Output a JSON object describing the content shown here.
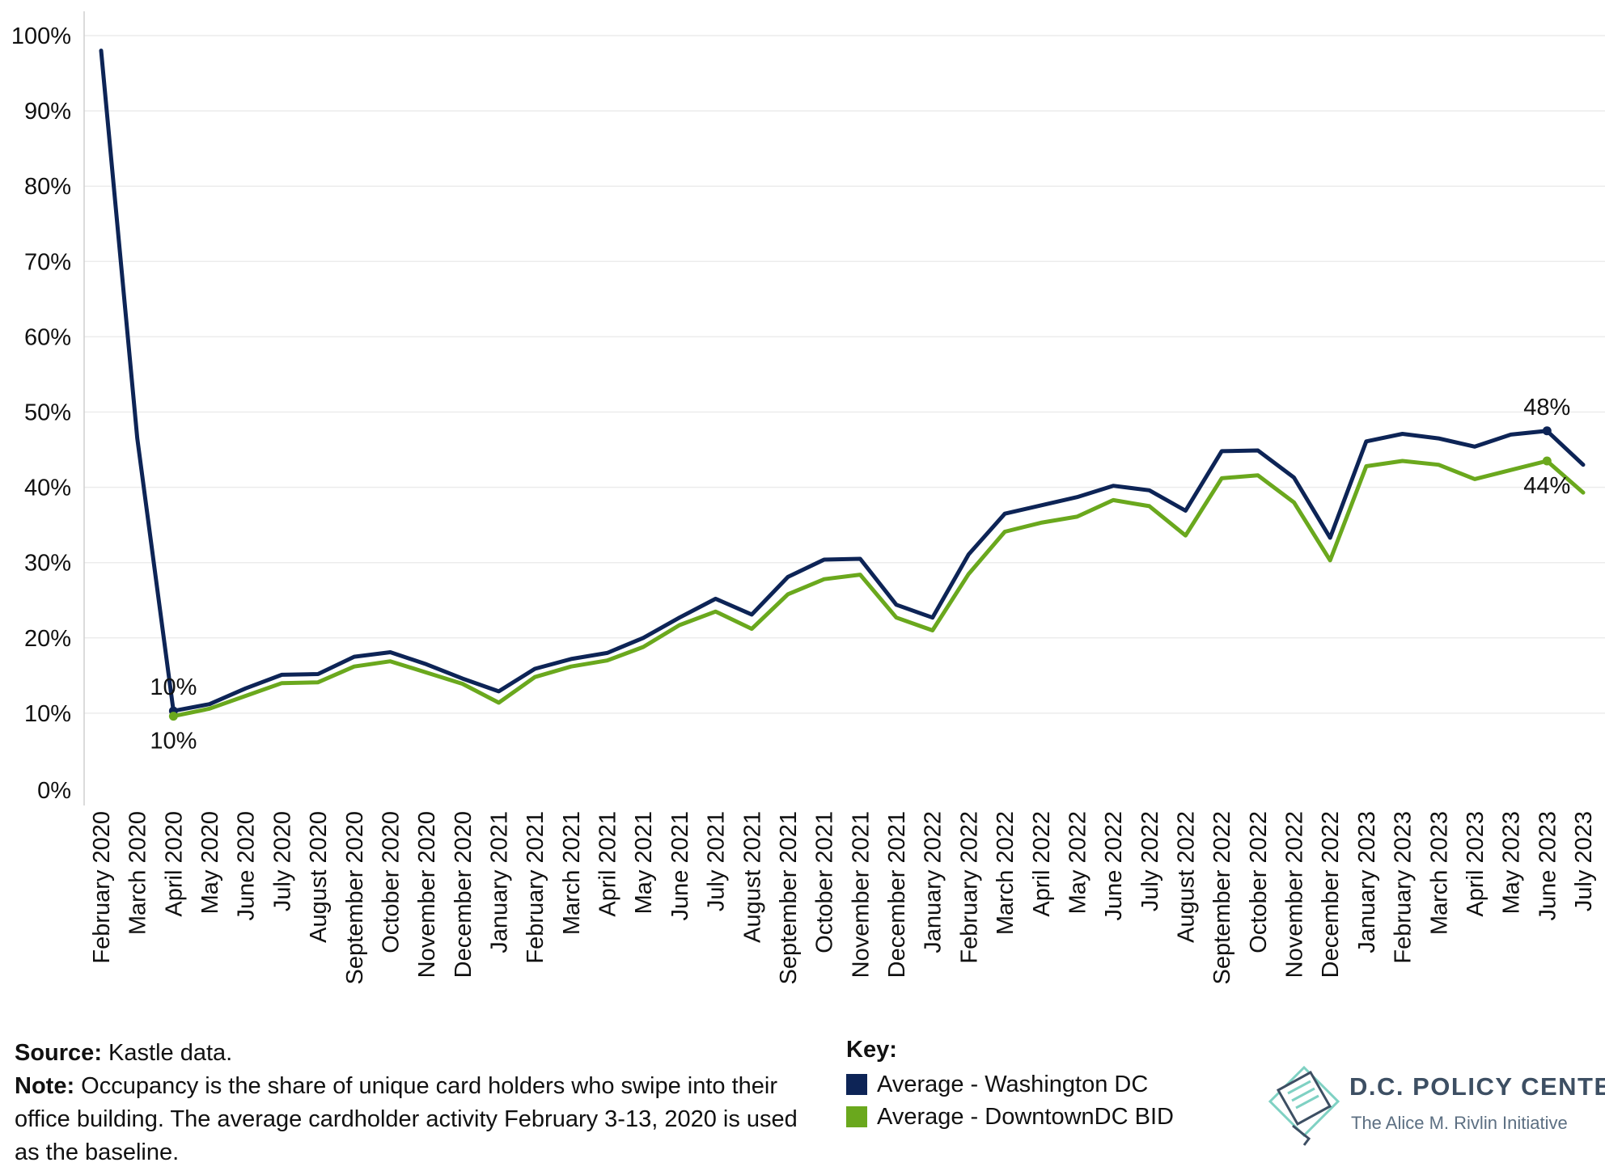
{
  "chart_data": {
    "type": "line",
    "ylim": [
      0,
      100
    ],
    "yticks": [
      "0%",
      "10%",
      "20%",
      "30%",
      "40%",
      "50%",
      "60%",
      "70%",
      "80%",
      "90%",
      "100%"
    ],
    "x": [
      "February 2020",
      "March 2020",
      "April 2020",
      "May 2020",
      "June 2020",
      "July 2020",
      "August 2020",
      "September 2020",
      "October 2020",
      "November 2020",
      "December 2020",
      "January 2021",
      "February 2021",
      "March 2021",
      "April 2021",
      "May 2021",
      "June 2021",
      "July 2021",
      "August 2021",
      "September 2021",
      "October 2021",
      "November 2021",
      "December 2021",
      "January 2022",
      "February 2022",
      "March 2022",
      "April 2022",
      "May 2022",
      "June 2022",
      "July 2022",
      "August 2022",
      "September 2022",
      "October 2022",
      "November 2022",
      "December 2022",
      "January 2023",
      "February 2023",
      "March 2023",
      "April 2023",
      "May 2023",
      "June 2023",
      "July 2023"
    ],
    "series": [
      {
        "name": "Average - Washington DC",
        "color": "#0d2456",
        "values": [
          98,
          46.5,
          10.3,
          11.2,
          13.3,
          15.1,
          15.2,
          17.5,
          18.1,
          16.5,
          14.6,
          12.9,
          15.9,
          17.2,
          18.0,
          20.0,
          22.7,
          25.2,
          23.1,
          28.1,
          30.4,
          30.5,
          24.4,
          22.7,
          31.1,
          36.5,
          37.6,
          38.7,
          40.2,
          39.6,
          36.9,
          44.8,
          44.9,
          41.3,
          33.3,
          46.1,
          47.1,
          46.5,
          45.4,
          47.0,
          47.5,
          43.0
        ]
      },
      {
        "name": "Average - DowntownDC BID",
        "color": "#6aa81d",
        "values": [
          null,
          null,
          9.6,
          10.6,
          12.3,
          14.0,
          14.1,
          16.2,
          16.9,
          15.4,
          13.9,
          11.4,
          14.8,
          16.2,
          17.0,
          18.8,
          21.7,
          23.5,
          21.2,
          25.8,
          27.8,
          28.4,
          22.7,
          21.0,
          28.5,
          34.1,
          35.3,
          36.1,
          38.3,
          37.5,
          33.6,
          41.2,
          41.6,
          38.0,
          30.3,
          42.8,
          43.5,
          43.0,
          41.1,
          42.3,
          43.5,
          39.3
        ]
      }
    ],
    "data_labels": [
      {
        "series": 0,
        "x": "April 2020",
        "text": "10%"
      },
      {
        "series": 1,
        "x": "April 2020",
        "text": "10%"
      },
      {
        "series": 0,
        "x": "June 2023",
        "text": "48%"
      },
      {
        "series": 1,
        "x": "June 2023",
        "text": "44%"
      }
    ],
    "grid": true,
    "legend": "bottom"
  },
  "footer": {
    "source_label": "Source:",
    "source_text": "Kastle data.",
    "note_label": "Note:",
    "note_text": "Occupancy is the share of unique card holders who swipe into their office building. The average cardholder activity February 3-13, 2020 is used as the baseline."
  },
  "key": {
    "title": "Key:",
    "items": [
      {
        "label": "Average - Washington DC",
        "color": "#0d2456"
      },
      {
        "label": "Average - DowntownDC BID",
        "color": "#6aa81d"
      }
    ]
  },
  "logo": {
    "name": "D.C. POLICY CENTER",
    "tagline": "The Alice M. Rivlin Initiative",
    "icon": "dc-map-document-icon"
  }
}
